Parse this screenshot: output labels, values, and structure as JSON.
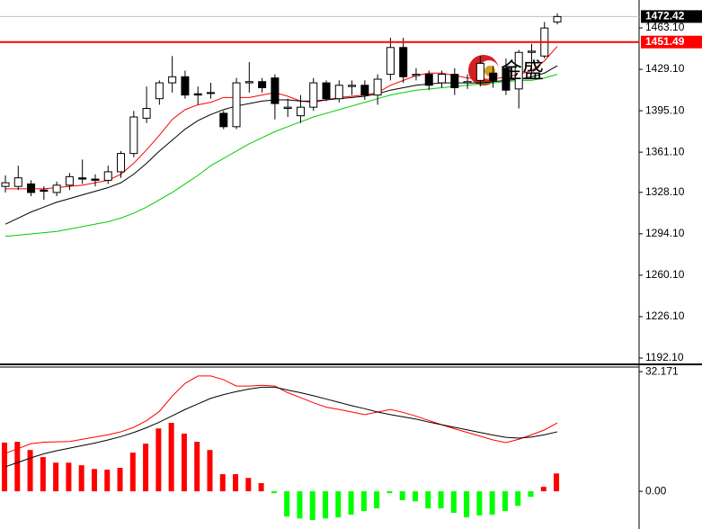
{
  "chart_data": [
    {
      "type": "candlestick",
      "watermark": "金盛",
      "last_price": 1472.42,
      "level_line": 1451.49,
      "up_color": "#ffffff",
      "down_color": "#000000",
      "level_color": "#ff0000",
      "last_color": "#c0c0c0",
      "ylim": [
        1188.4,
        1482.3
      ],
      "yticks": [
        {
          "value": 1463.1,
          "label": "1463.10"
        },
        {
          "value": 1429.1,
          "label": "1429.10"
        },
        {
          "value": 1395.1,
          "label": "1395.10"
        },
        {
          "value": 1361.1,
          "label": "1361.10"
        },
        {
          "value": 1328.1,
          "label": "1328.10"
        },
        {
          "value": 1294.1,
          "label": "1294.10"
        },
        {
          "value": 1260.1,
          "label": "1260.10"
        },
        {
          "value": 1226.1,
          "label": "1226.10"
        },
        {
          "value": 1192.1,
          "label": "1192.10"
        }
      ],
      "open": [
        1333,
        1333,
        1335,
        1330,
        1328,
        1334,
        1340,
        1339,
        1338,
        1345,
        1360,
        1389,
        1405,
        1418,
        1423,
        1409,
        1410,
        1393,
        1382,
        1418,
        1419,
        1422,
        1397,
        1391,
        1398,
        1418,
        1405,
        1415,
        1416,
        1408,
        1425,
        1447,
        1424,
        1425,
        1418,
        1425,
        1418,
        1420,
        1426,
        1430,
        1413,
        1443,
        1440,
        1468
      ],
      "high": [
        1342,
        1350,
        1338,
        1333,
        1337,
        1344,
        1355,
        1343,
        1350,
        1362,
        1395,
        1415,
        1420,
        1440,
        1428,
        1415,
        1418,
        1395,
        1422,
        1435,
        1422,
        1425,
        1405,
        1408,
        1422,
        1420,
        1420,
        1420,
        1420,
        1425,
        1455,
        1455,
        1430,
        1428,
        1428,
        1430,
        1425,
        1440,
        1432,
        1438,
        1445,
        1450,
        1468,
        1475
      ],
      "low": [
        1328,
        1330,
        1325,
        1322,
        1325,
        1330,
        1335,
        1333,
        1335,
        1340,
        1357,
        1385,
        1400,
        1410,
        1405,
        1400,
        1405,
        1380,
        1380,
        1410,
        1410,
        1388,
        1390,
        1385,
        1395,
        1403,
        1402,
        1408,
        1404,
        1400,
        1420,
        1418,
        1420,
        1412,
        1414,
        1408,
        1413,
        1415,
        1414,
        1408,
        1397,
        1425,
        1438,
        1466
      ],
      "close": [
        1336,
        1340,
        1328,
        1329,
        1334,
        1341,
        1339,
        1338,
        1345,
        1360,
        1390,
        1397,
        1418,
        1423,
        1408,
        1408,
        1410,
        1382,
        1418,
        1419,
        1414,
        1401,
        1398,
        1398,
        1418,
        1405,
        1416,
        1416,
        1408,
        1421,
        1447,
        1423,
        1425,
        1416,
        1425,
        1414,
        1419,
        1434,
        1420,
        1412,
        1443,
        1444,
        1463,
        1472.42
      ],
      "series": [
        {
          "color": "#ff0000",
          "values": [
            1331,
            1331,
            1331,
            1331,
            1332,
            1333,
            1334,
            1336,
            1338,
            1343,
            1352,
            1363,
            1375,
            1388,
            1396,
            1400,
            1402,
            1406,
            1406,
            1406,
            1408,
            1410,
            1407,
            1403,
            1402,
            1404,
            1406,
            1407,
            1408,
            1410,
            1416,
            1420,
            1424,
            1426,
            1426,
            1424,
            1422,
            1421,
            1421,
            1423,
            1425,
            1428,
            1436,
            1448
          ]
        },
        {
          "color": "#000000",
          "values": [
            1302,
            1307,
            1312,
            1316,
            1320,
            1323,
            1326,
            1329,
            1332,
            1336,
            1343,
            1352,
            1362,
            1371,
            1380,
            1387,
            1392,
            1396,
            1399,
            1401,
            1403,
            1404,
            1404,
            1403,
            1403,
            1404,
            1405,
            1406,
            1407,
            1409,
            1412,
            1414,
            1416,
            1417,
            1418,
            1418,
            1418,
            1418,
            1419,
            1420,
            1421,
            1423,
            1426,
            1432
          ]
        },
        {
          "color": "#00cc00",
          "values": [
            1292,
            1293,
            1294,
            1295,
            1296,
            1298,
            1300,
            1302,
            1304,
            1307,
            1311,
            1316,
            1322,
            1328,
            1335,
            1342,
            1350,
            1356,
            1362,
            1368,
            1373,
            1378,
            1382,
            1386,
            1390,
            1393,
            1396,
            1399,
            1402,
            1405,
            1408,
            1410,
            1412,
            1413,
            1414,
            1415,
            1416,
            1417,
            1418,
            1419,
            1420,
            1420,
            1422,
            1425
          ]
        }
      ]
    },
    {
      "type": "bar",
      "pos_color": "#ff0000",
      "neg_color": "#00ff00",
      "ylim": [
        -8.2,
        33.4
      ],
      "yticks": [
        {
          "value": 0,
          "label": "0.00"
        },
        32.171
      ],
      "values": [
        13.1,
        13.3,
        11.1,
        9.2,
        7.7,
        7.7,
        7.0,
        6.0,
        5.8,
        6.3,
        10.4,
        12.8,
        16.9,
        18.4,
        15.5,
        13.3,
        11.1,
        4.6,
        4.6,
        3.6,
        2.2,
        -0.5,
        -6.8,
        -7.3,
        -7.7,
        -7.3,
        -7.0,
        -6.3,
        -5.3,
        -4.6,
        -0.5,
        -2.4,
        -2.7,
        -4.6,
        -4.6,
        -5.8,
        -7.0,
        -6.5,
        -6.3,
        -5.3,
        -3.9,
        -1.5,
        1.2,
        4.8
      ],
      "series": [
        {
          "color": "#ff0000",
          "values": [
            10.2,
            11.5,
            12.8,
            13.2,
            13.3,
            13.4,
            14.0,
            14.6,
            15.2,
            16.0,
            17.2,
            19.0,
            21.5,
            25.6,
            29.0,
            31.0,
            31.0,
            30.0,
            28.3,
            28.3,
            28.5,
            28.3,
            26.5,
            25.2,
            23.8,
            22.6,
            22.0,
            21.3,
            20.6,
            21.3,
            22.0,
            21.2,
            20.2,
            19.0,
            17.9,
            16.8,
            15.8,
            14.8,
            13.8,
            13.1,
            14.0,
            15.2,
            16.5,
            18.4
          ]
        },
        {
          "color": "#000000",
          "values": [
            6.6,
            7.8,
            9.0,
            10.1,
            10.9,
            11.6,
            12.3,
            13.0,
            13.8,
            14.7,
            15.8,
            17.1,
            18.6,
            20.3,
            22.0,
            23.5,
            25.0,
            26.0,
            26.8,
            27.5,
            28.0,
            28.0,
            27.2,
            26.5,
            25.7,
            24.8,
            23.9,
            23.0,
            22.2,
            21.3,
            20.6,
            20.0,
            19.4,
            18.6,
            17.9,
            17.2,
            16.5,
            15.8,
            15.1,
            14.5,
            14.3,
            14.6,
            15.2,
            16.0
          ]
        }
      ]
    }
  ]
}
